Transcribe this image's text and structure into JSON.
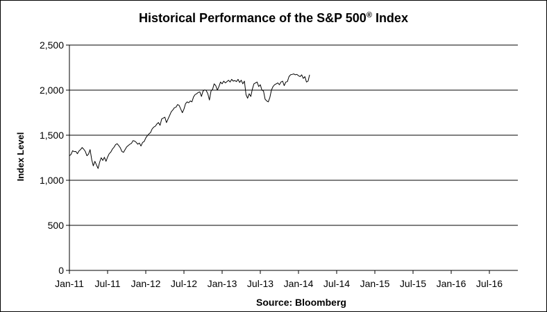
{
  "chart_data": {
    "type": "line",
    "title_main": "Historical Performance of the S&P 500",
    "title_reg": "®",
    "title_tail": " Index",
    "ylabel": "Index Level",
    "source": "Source:  Bloomberg",
    "ylim": [
      0,
      2500
    ],
    "yticks": [
      0,
      500,
      1000,
      1500,
      2000,
      2500
    ],
    "ytick_labels": [
      "0",
      "500",
      "1,000",
      "1,500",
      "2,000",
      "2,500"
    ],
    "xticks": [
      "Jan-11",
      "Jul-11",
      "Jan-12",
      "Jul-12",
      "Jan-13",
      "Jul-13",
      "Jan-14",
      "Jul-14",
      "Jan-15",
      "Jul-15",
      "Jan-16",
      "Jul-16"
    ],
    "grid": "horizontal",
    "legend": "none",
    "series": [
      {
        "color": "#000000",
        "points": [
          [
            0,
            1271
          ],
          [
            0.5,
            1286
          ],
          [
            1,
            1328
          ],
          [
            1.5,
            1318
          ],
          [
            2,
            1320
          ],
          [
            2.5,
            1295
          ],
          [
            3,
            1325
          ],
          [
            3.5,
            1340
          ],
          [
            4,
            1363
          ],
          [
            4.5,
            1345
          ],
          [
            5,
            1320
          ],
          [
            5.5,
            1272
          ],
          [
            6,
            1290
          ],
          [
            6.5,
            1340
          ],
          [
            7,
            1230
          ],
          [
            7.5,
            1160
          ],
          [
            8,
            1210
          ],
          [
            8.5,
            1170
          ],
          [
            9,
            1131
          ],
          [
            9.5,
            1200
          ],
          [
            10,
            1250
          ],
          [
            10.5,
            1220
          ],
          [
            11,
            1255
          ],
          [
            11.5,
            1210
          ],
          [
            12,
            1258
          ],
          [
            12.5,
            1295
          ],
          [
            13,
            1312
          ],
          [
            13.5,
            1345
          ],
          [
            14,
            1366
          ],
          [
            14.5,
            1395
          ],
          [
            15,
            1405
          ],
          [
            15.5,
            1385
          ],
          [
            16,
            1360
          ],
          [
            16.5,
            1320
          ],
          [
            17,
            1310
          ],
          [
            17.5,
            1340
          ],
          [
            18,
            1370
          ],
          [
            18.5,
            1385
          ],
          [
            19,
            1400
          ],
          [
            19.5,
            1410
          ],
          [
            20,
            1440
          ],
          [
            20.5,
            1435
          ],
          [
            21,
            1420
          ],
          [
            21.5,
            1400
          ],
          [
            22,
            1413
          ],
          [
            22.5,
            1380
          ],
          [
            23,
            1420
          ],
          [
            23.5,
            1430
          ],
          [
            24,
            1470
          ],
          [
            24.5,
            1495
          ],
          [
            25,
            1515
          ],
          [
            25.5,
            1530
          ],
          [
            26,
            1570
          ],
          [
            26.5,
            1590
          ],
          [
            27,
            1600
          ],
          [
            27.5,
            1625
          ],
          [
            28,
            1640
          ],
          [
            28.5,
            1610
          ],
          [
            29,
            1680
          ],
          [
            29.5,
            1690
          ],
          [
            30,
            1700
          ],
          [
            30.5,
            1640
          ],
          [
            31,
            1680
          ],
          [
            31.5,
            1720
          ],
          [
            32,
            1760
          ],
          [
            32.5,
            1780
          ],
          [
            33,
            1805
          ],
          [
            33.5,
            1810
          ],
          [
            34,
            1840
          ],
          [
            34.5,
            1830
          ],
          [
            35,
            1790
          ],
          [
            35.5,
            1750
          ],
          [
            36,
            1790
          ],
          [
            36.5,
            1850
          ],
          [
            37,
            1870
          ],
          [
            37.5,
            1860
          ],
          [
            38,
            1880
          ],
          [
            38.5,
            1870
          ],
          [
            39,
            1925
          ],
          [
            39.5,
            1950
          ],
          [
            40,
            1960
          ],
          [
            40.5,
            1975
          ],
          [
            41,
            1980
          ],
          [
            41.5,
            1930
          ],
          [
            42,
            1990
          ],
          [
            42.5,
            2003
          ],
          [
            43,
            1995
          ],
          [
            43.5,
            1960
          ],
          [
            44,
            1890
          ],
          [
            44.5,
            1990
          ],
          [
            45,
            2010
          ],
          [
            45.5,
            2070
          ],
          [
            46,
            2050
          ],
          [
            46.5,
            2000
          ],
          [
            47,
            2040
          ],
          [
            47.5,
            2090
          ],
          [
            48,
            2070
          ],
          [
            48.5,
            2100
          ],
          [
            49,
            2080
          ],
          [
            49.5,
            2095
          ],
          [
            50,
            2110
          ],
          [
            50.5,
            2090
          ],
          [
            51,
            2120
          ],
          [
            51.5,
            2100
          ],
          [
            52,
            2107
          ],
          [
            52.5,
            2095
          ],
          [
            53,
            2120
          ],
          [
            53.5,
            2085
          ],
          [
            54,
            2110
          ],
          [
            54.5,
            2070
          ],
          [
            55,
            2100
          ],
          [
            55.5,
            1950
          ],
          [
            56,
            1910
          ],
          [
            56.5,
            1960
          ],
          [
            57,
            1930
          ],
          [
            57.5,
            2010
          ],
          [
            58,
            2070
          ],
          [
            58.5,
            2080
          ],
          [
            59,
            2090
          ],
          [
            59.5,
            2040
          ],
          [
            60,
            2060
          ],
          [
            60.5,
            2000
          ],
          [
            61,
            1990
          ],
          [
            61.5,
            1900
          ],
          [
            62,
            1880
          ],
          [
            62.5,
            1870
          ],
          [
            63,
            1920
          ],
          [
            63.5,
            2000
          ],
          [
            64,
            2040
          ],
          [
            64.5,
            2060
          ],
          [
            65,
            2070
          ],
          [
            65.5,
            2080
          ],
          [
            66,
            2060
          ],
          [
            66.5,
            2090
          ],
          [
            67,
            2100
          ],
          [
            67.5,
            2050
          ],
          [
            68,
            2090
          ],
          [
            68.5,
            2095
          ],
          [
            69,
            2150
          ],
          [
            69.5,
            2170
          ],
          [
            70,
            2175
          ],
          [
            70.5,
            2180
          ],
          [
            71,
            2170
          ],
          [
            71.5,
            2175
          ],
          [
            72,
            2160
          ],
          [
            72.5,
            2150
          ],
          [
            73,
            2170
          ],
          [
            73.5,
            2130
          ],
          [
            74,
            2150
          ],
          [
            74.5,
            2090
          ],
          [
            75,
            2100
          ],
          [
            75.5,
            2170
          ]
        ]
      }
    ]
  }
}
